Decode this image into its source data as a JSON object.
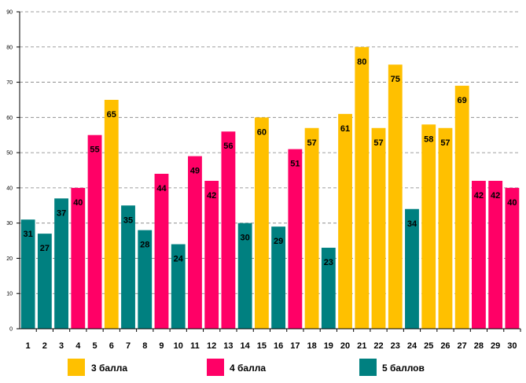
{
  "chart_data": {
    "type": "bar",
    "title": "",
    "xlabel": "",
    "ylabel": "",
    "ylim": [
      0,
      90
    ],
    "yticks": [
      0,
      10,
      20,
      30,
      40,
      50,
      60,
      70,
      80,
      90
    ],
    "grid": true,
    "legend_position": "bottom",
    "categories": [
      "1",
      "2",
      "3",
      "4",
      "5",
      "6",
      "7",
      "8",
      "9",
      "10",
      "11",
      "12",
      "13",
      "14",
      "15",
      "16",
      "17",
      "18",
      "19",
      "20",
      "21",
      "22",
      "23",
      "24",
      "25",
      "26",
      "27",
      "28",
      "29",
      "30"
    ],
    "values": [
      31,
      27,
      37,
      40,
      55,
      65,
      35,
      28,
      44,
      24,
      49,
      42,
      56,
      30,
      60,
      29,
      51,
      57,
      23,
      61,
      80,
      57,
      75,
      34,
      58,
      57,
      69,
      42,
      42,
      40
    ],
    "groups": [
      "5 баллов",
      "5 баллов",
      "5 баллов",
      "4 балла",
      "4 балла",
      "3 балла",
      "5 баллов",
      "5 баллов",
      "4 балла",
      "5 баллов",
      "4 балла",
      "4 балла",
      "4 балла",
      "5 баллов",
      "3 балла",
      "5 баллов",
      "4 балла",
      "3 балла",
      "5 баллов",
      "3 балла",
      "3 балла",
      "3 балла",
      "3 балла",
      "5 баллов",
      "3 балла",
      "3 балла",
      "3 балла",
      "4 балла",
      "4 балла",
      "4 балла"
    ],
    "legend": [
      {
        "label": "3 балла",
        "color": "#FFC000"
      },
      {
        "label": "4 балла",
        "color": "#FF0066"
      },
      {
        "label": "5 баллов",
        "color": "#008080"
      }
    ]
  }
}
